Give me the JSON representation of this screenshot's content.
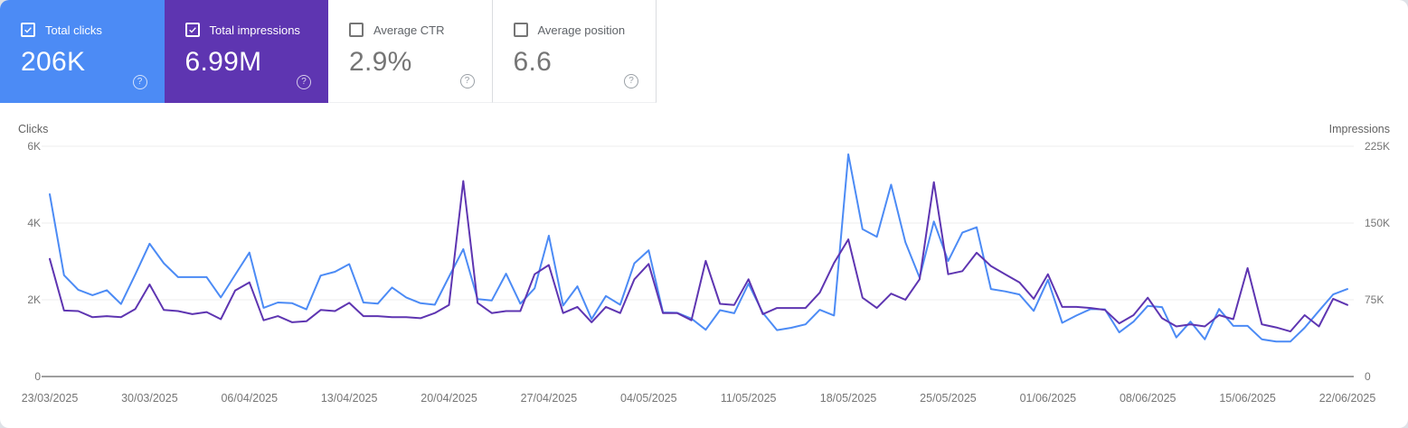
{
  "cards": [
    {
      "label": "Total clicks",
      "value": "206K",
      "checked": true,
      "bg": "#4c8bf5"
    },
    {
      "label": "Total impressions",
      "value": "6.99M",
      "checked": true,
      "bg": "#5e35b1"
    },
    {
      "label": "Average CTR",
      "value": "2.9%",
      "checked": false,
      "bg": "#ffffff"
    },
    {
      "label": "Average position",
      "value": "6.6",
      "checked": false,
      "bg": "#ffffff"
    }
  ],
  "icons": {
    "help_glyph": "?",
    "checkbox_checked": "check",
    "checkbox_unchecked": "empty"
  },
  "colors": {
    "clicks_line": "#4c8bf5",
    "impressions_line": "#5e35b1",
    "grid": "#ececec",
    "axis_line": "#9e9e9e",
    "tick_text": "#757575",
    "axis_title_text": "#616161"
  },
  "chart_data": {
    "type": "line",
    "interval": "daily",
    "start_date": "23/03/2025",
    "end_date": "22/06/2025",
    "grid": "horizontal-only",
    "left_axis": {
      "title": "Clicks",
      "ticks": [
        "0",
        "2K",
        "4K",
        "6K"
      ],
      "max": 6000
    },
    "right_axis": {
      "title": "Impressions",
      "ticks": [
        "0",
        "75K",
        "150K",
        "225K"
      ],
      "max": 225000
    },
    "x_tick_labels": [
      "23/03/2025",
      "30/03/2025",
      "06/04/2025",
      "13/04/2025",
      "20/04/2025",
      "27/04/2025",
      "04/05/2025",
      "11/05/2025",
      "18/05/2025",
      "25/05/2025",
      "01/06/2025",
      "08/06/2025",
      "15/06/2025",
      "22/06/2025"
    ],
    "series": [
      {
        "name": "Clicks",
        "axis": "left",
        "color": "#4c8bf5",
        "values": [
          4750,
          2640,
          2260,
          2120,
          2250,
          1890,
          2660,
          3460,
          2950,
          2590,
          2590,
          2590,
          2060,
          2650,
          3230,
          1790,
          1930,
          1910,
          1750,
          2630,
          2730,
          2930,
          1930,
          1900,
          2320,
          2060,
          1910,
          1870,
          2600,
          3320,
          2020,
          1980,
          2680,
          1900,
          2300,
          3670,
          1850,
          2350,
          1500,
          2100,
          1870,
          2950,
          3290,
          1670,
          1660,
          1510,
          1220,
          1730,
          1650,
          2420,
          1660,
          1210,
          1270,
          1360,
          1740,
          1590,
          5790,
          3840,
          3640,
          5000,
          3500,
          2580,
          4040,
          3010,
          3750,
          3890,
          2280,
          2220,
          2140,
          1710,
          2520,
          1400,
          1590,
          1760,
          1750,
          1150,
          1430,
          1840,
          1810,
          1020,
          1430,
          970,
          1760,
          1320,
          1320,
          970,
          910,
          910,
          1270,
          1710,
          2140,
          2280
        ]
      },
      {
        "name": "Impressions",
        "axis": "right",
        "color": "#5e35b1",
        "values": [
          115000,
          64500,
          64000,
          58000,
          59000,
          58000,
          66000,
          90000,
          65000,
          64000,
          61000,
          63000,
          56000,
          84000,
          92000,
          55000,
          59000,
          53000,
          54000,
          65000,
          64000,
          72000,
          59000,
          59000,
          58000,
          58000,
          57000,
          62000,
          70000,
          191000,
          72000,
          62000,
          64000,
          64000,
          100000,
          109000,
          62000,
          68000,
          53000,
          68000,
          62000,
          95000,
          110000,
          62000,
          62000,
          55000,
          113000,
          71000,
          70000,
          95000,
          61000,
          67000,
          67000,
          67000,
          82000,
          111000,
          134000,
          77000,
          67000,
          81000,
          75000,
          95000,
          190000,
          100000,
          103000,
          121000,
          108000,
          100000,
          92000,
          76000,
          100000,
          68000,
          68000,
          67000,
          65000,
          52000,
          60000,
          77000,
          57000,
          49000,
          51000,
          49000,
          60000,
          56000,
          106000,
          51000,
          48000,
          44000,
          60000,
          49000,
          76000,
          70000
        ]
      }
    ]
  }
}
